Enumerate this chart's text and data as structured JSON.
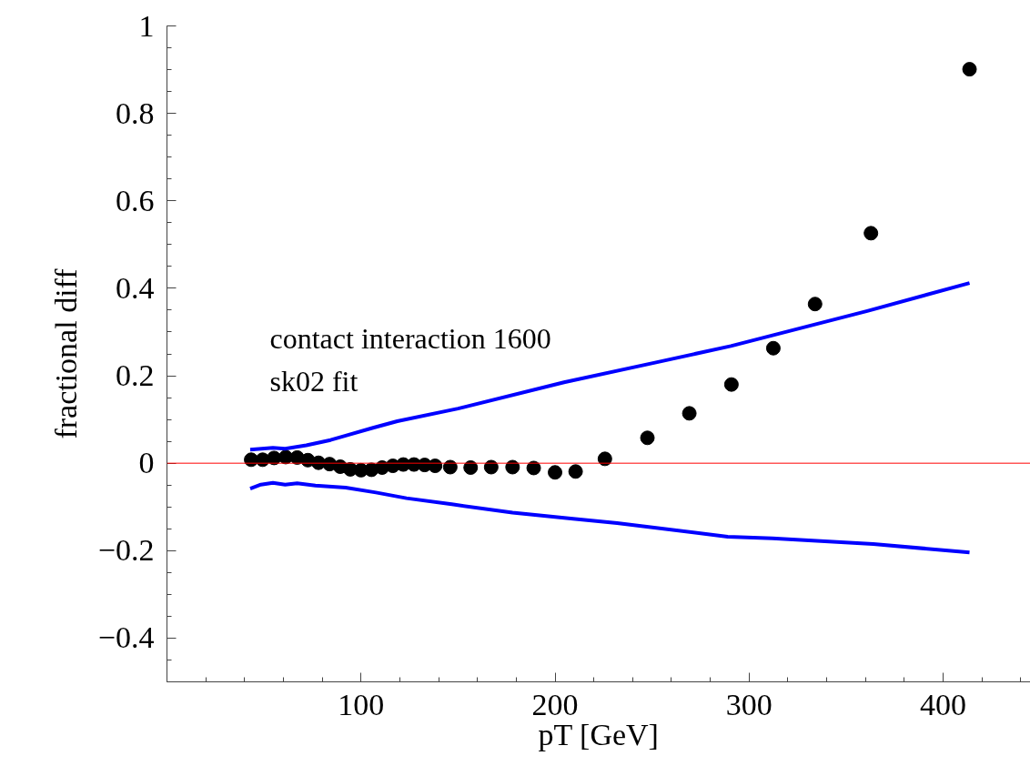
{
  "chart_data": {
    "type": "scatter",
    "xlabel": "pT [GeV]",
    "ylabel": "fractional diff",
    "annotations": [
      "contact  interaction 1600",
      " sk02 fit"
    ],
    "xlim": [
      0,
      445
    ],
    "ylim": [
      -0.5,
      1
    ],
    "xticks": [
      100,
      200,
      300,
      400
    ],
    "yticks": [
      {
        "value": -0.4,
        "label": "−0.4"
      },
      {
        "value": -0.2,
        "label": "−0.2"
      },
      0,
      0.2,
      0.4,
      0.6,
      0.8,
      1
    ],
    "grid": false,
    "ref_lines": [
      {
        "axis": "y",
        "value": 0,
        "label": null,
        "color": "#ff0000"
      }
    ],
    "series": [
      {
        "marker": "circle",
        "color": "#000000",
        "x": [
          43.4,
          49.3,
          55.2,
          61.2,
          67.1,
          72.6,
          78.1,
          83.8,
          89.3,
          94.5,
          100,
          105.4,
          110.9,
          116.4,
          121.8,
          127.3,
          132.8,
          138.2,
          146,
          156.5,
          167.1,
          178.1,
          189,
          200,
          210.6,
          225.7,
          247.6,
          269.2,
          290.9,
          312.5,
          334,
          362.8,
          413.6
        ],
        "values": [
          0.008,
          0.008,
          0.012,
          0.014,
          0.013,
          0.007,
          0.001,
          -0.002,
          -0.008,
          -0.014,
          -0.016,
          -0.015,
          -0.01,
          -0.006,
          -0.003,
          -0.003,
          -0.004,
          -0.006,
          -0.009,
          -0.01,
          -0.009,
          -0.009,
          -0.011,
          -0.021,
          -0.019,
          0.01,
          0.058,
          0.114,
          0.18,
          0.263,
          0.364,
          0.526,
          0.901
        ]
      },
      {
        "type": "line",
        "marker": "none",
        "color": "#0000ff",
        "x": [
          42.9,
          54.6,
          60.9,
          71.8,
          84.3,
          92.1,
          106.2,
          118.7,
          150,
          204.6,
          251.5,
          290.6,
          312.5,
          360.9,
          413.6
        ],
        "values": [
          0.031,
          0.035,
          0.033,
          0.041,
          0.053,
          0.063,
          0.081,
          0.096,
          0.125,
          0.185,
          0.23,
          0.268,
          0.293,
          0.348,
          0.412
        ]
      },
      {
        "type": "line",
        "marker": "none",
        "color": "#0000ff",
        "x": [
          42.9,
          48.4,
          54.6,
          60.9,
          67.1,
          76.5,
          92.1,
          107.7,
          123.4,
          146.8,
          178.1,
          209.3,
          232,
          289,
          312,
          364,
          413.6
        ],
        "values": [
          -0.058,
          -0.049,
          -0.045,
          -0.049,
          -0.046,
          -0.051,
          -0.056,
          -0.067,
          -0.08,
          -0.094,
          -0.113,
          -0.127,
          -0.137,
          -0.168,
          -0.172,
          -0.185,
          -0.204
        ]
      }
    ]
  }
}
